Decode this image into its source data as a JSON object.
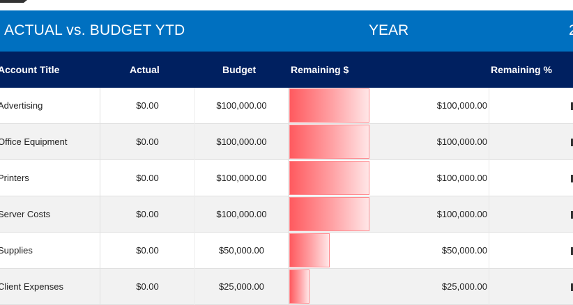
{
  "title_bar": {
    "title": "ACTUAL vs. BUDGET YTD",
    "year_label": "YEAR",
    "year_value_partial": "2"
  },
  "columns": [
    "Account Title",
    "Actual",
    "Budget",
    "Remaining $",
    "Remaining %"
  ],
  "rows": [
    {
      "account": "Advertising",
      "actual": "$0.00",
      "budget": "$100,000.00",
      "remaining": "$100,000.00",
      "bar_pct": 100
    },
    {
      "account": "Office Equipment",
      "actual": "$0.00",
      "budget": "$100,000.00",
      "remaining": "$100,000.00",
      "bar_pct": 100
    },
    {
      "account": "Printers",
      "actual": "$0.00",
      "budget": "$100,000.00",
      "remaining": "$100,000.00",
      "bar_pct": 100
    },
    {
      "account": "Server Costs",
      "actual": "$0.00",
      "budget": "$100,000.00",
      "remaining": "$100,000.00",
      "bar_pct": 100
    },
    {
      "account": "Supplies",
      "actual": "$0.00",
      "budget": "$50,000.00",
      "remaining": "$50,000.00",
      "bar_pct": 50
    },
    {
      "account": "Client Expenses",
      "actual": "$0.00",
      "budget": "$25,000.00",
      "remaining": "$25,000.00",
      "bar_pct": 25
    }
  ],
  "colors": {
    "title_bg": "#0070c0",
    "header_bg": "#002060",
    "bar_start": "#ff5a5f",
    "bar_end": "#ffe6e7",
    "alt_row": "#f2f2f2"
  }
}
